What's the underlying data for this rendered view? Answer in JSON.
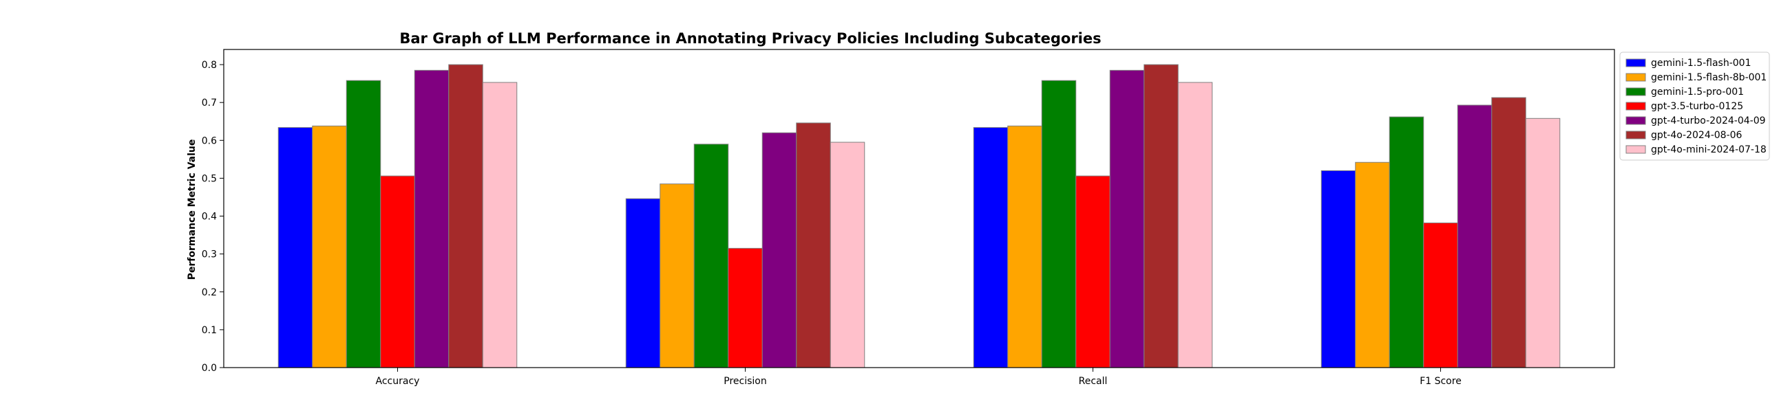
{
  "chart_data": {
    "type": "bar",
    "title": "Bar Graph of LLM Performance in Annotating Privacy Policies Including Subcategories",
    "xlabel": "",
    "ylabel": "Performance Metric Value",
    "ylim": [
      0,
      0.84
    ],
    "yticks": [
      0.0,
      0.1,
      0.2,
      0.3,
      0.4,
      0.5,
      0.6,
      0.7,
      0.8
    ],
    "ytick_labels": [
      "0.0",
      "0.1",
      "0.2",
      "0.3",
      "0.4",
      "0.5",
      "0.6",
      "0.7",
      "0.8"
    ],
    "categories": [
      "Accuracy",
      "Precision",
      "Recall",
      "F1 Score"
    ],
    "legend_position": "outside right, top",
    "grid": false,
    "series": [
      {
        "name": "gemini-1.5-flash-001",
        "color": "#0000ff",
        "values": [
          0.634,
          0.446,
          0.634,
          0.52
        ]
      },
      {
        "name": "gemini-1.5-flash-8b-001",
        "color": "#ffa500",
        "values": [
          0.638,
          0.485,
          0.638,
          0.542
        ]
      },
      {
        "name": "gemini-1.5-pro-001",
        "color": "#008000",
        "values": [
          0.758,
          0.59,
          0.758,
          0.662
        ]
      },
      {
        "name": "gpt-3.5-turbo-0125",
        "color": "#ff0000",
        "values": [
          0.506,
          0.315,
          0.506,
          0.382
        ]
      },
      {
        "name": "gpt-4-turbo-2024-04-09",
        "color": "#800080",
        "values": [
          0.785,
          0.62,
          0.785,
          0.693
        ]
      },
      {
        "name": "gpt-4o-2024-08-06",
        "color": "#a52a2a",
        "values": [
          0.8,
          0.646,
          0.8,
          0.713
        ]
      },
      {
        "name": "gpt-4o-mini-2024-07-18",
        "color": "#ffc0cb",
        "values": [
          0.753,
          0.595,
          0.753,
          0.658
        ]
      }
    ]
  }
}
